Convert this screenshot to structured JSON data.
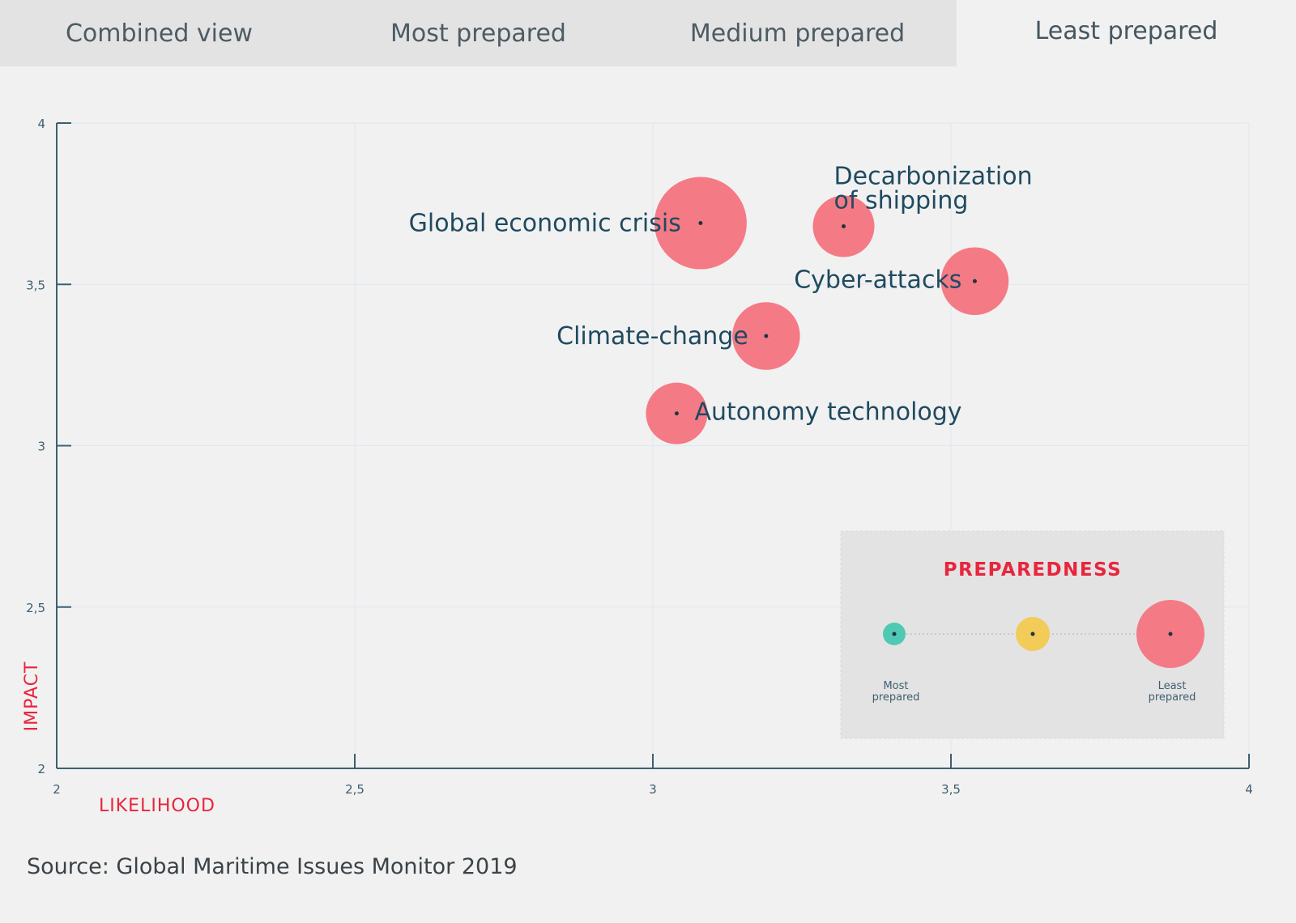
{
  "tabs": [
    {
      "label": "Combined view",
      "active": false
    },
    {
      "label": "Most prepared",
      "active": false
    },
    {
      "label": "Medium prepared",
      "active": false
    },
    {
      "label": "Least prepared",
      "active": true
    }
  ],
  "source": "Source: Global Maritime Issues Monitor 2019",
  "colors": {
    "least": "#f47a86",
    "medium": "#f2cb58",
    "most": "#4fc8b4",
    "axis_title": "#e8253c",
    "label": "#1f4a5f",
    "axis": "#3e5f70"
  },
  "chart_data": {
    "type": "scatter",
    "xlabel": "LIKELIHOOD",
    "ylabel": "IMPACT",
    "xlim": [
      2,
      4
    ],
    "ylim": [
      2,
      4
    ],
    "x_ticks": [
      "2",
      "2,5",
      "3",
      "3,5",
      "4"
    ],
    "y_ticks": [
      "2",
      "2,5",
      "3",
      "3,5",
      "4"
    ],
    "grid": true,
    "points": [
      {
        "label": "Global economic crisis",
        "x": 3.08,
        "y": 3.69,
        "size": 3
      },
      {
        "label": "Decarbonization of shipping",
        "x": 3.32,
        "y": 3.68,
        "size": 2
      },
      {
        "label": "Cyber-attacks",
        "x": 3.54,
        "y": 3.51,
        "size": 2.2
      },
      {
        "label": "Climate-change",
        "x": 3.19,
        "y": 3.34,
        "size": 2.2
      },
      {
        "label": "Autonomy technology",
        "x": 3.04,
        "y": 3.1,
        "size": 2
      }
    ]
  },
  "legend": {
    "title": "PREPAREDNESS",
    "most_label": "Most prepared",
    "least_label": "Least prepared"
  }
}
